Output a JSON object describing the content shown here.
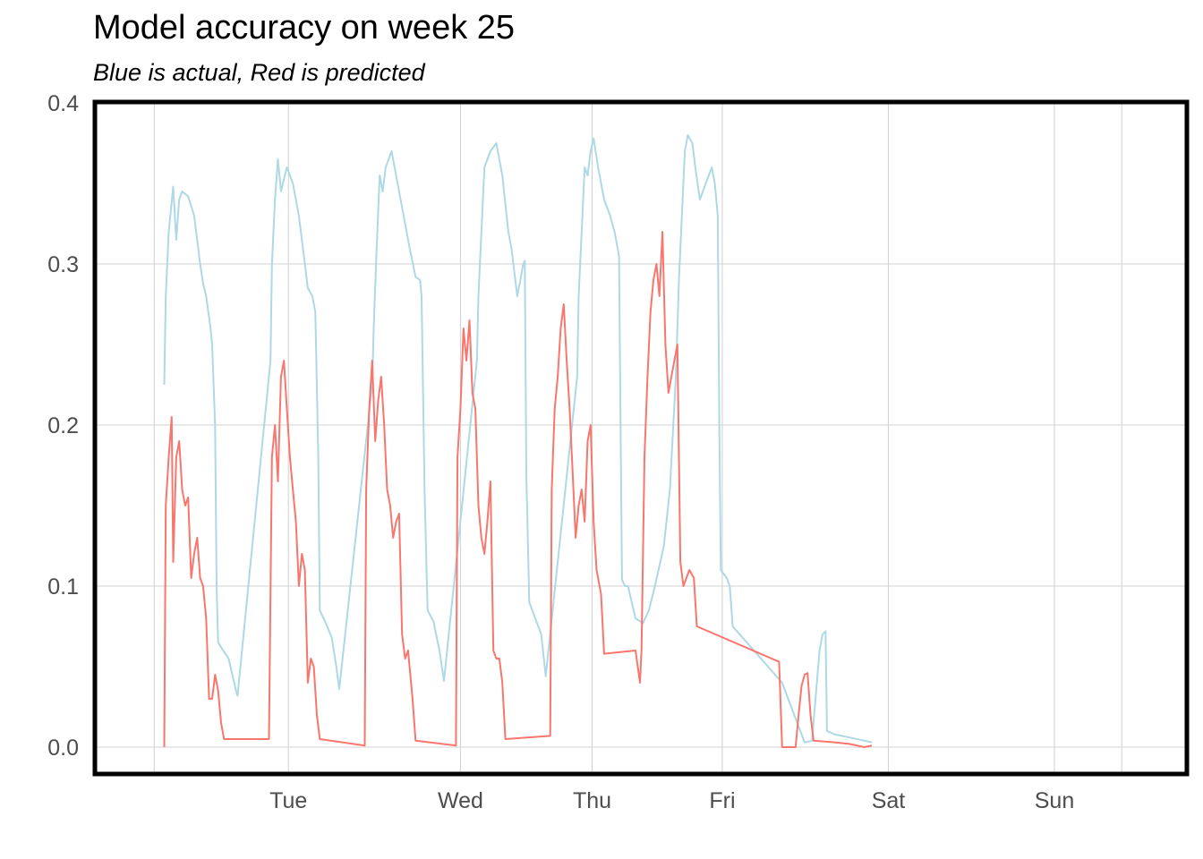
{
  "chart_data": {
    "type": "line",
    "title": "Model accuracy on week 25",
    "subtitle": "Blue is actual, Red is predicted",
    "xlabel": "",
    "ylabel": "",
    "ylim": [
      0,
      0.4
    ],
    "xlim": [
      0,
      7
    ],
    "y_ticks": [
      "0.0",
      "0.1",
      "0.2",
      "0.3",
      "0.4"
    ],
    "y_tick_values": [
      0,
      0.1,
      0.2,
      0.3,
      0.4
    ],
    "x_ticks": [
      {
        "label": "Tue",
        "x": 1.15
      },
      {
        "label": "Wed",
        "x": 2.3
      },
      {
        "label": "Thu",
        "x": 3.18
      },
      {
        "label": "Fri",
        "x": 4.05
      },
      {
        "label": "Sat",
        "x": 5.16
      },
      {
        "label": "Sun",
        "x": 6.27
      }
    ],
    "grid": true,
    "legend": "none",
    "series": [
      {
        "color": "#add8e6",
        "points": [
          [
            0.32,
            0.225
          ],
          [
            0.33,
            0.28
          ],
          [
            0.35,
            0.32
          ],
          [
            0.38,
            0.348
          ],
          [
            0.4,
            0.315
          ],
          [
            0.42,
            0.34
          ],
          [
            0.44,
            0.345
          ],
          [
            0.48,
            0.342
          ],
          [
            0.52,
            0.33
          ],
          [
            0.56,
            0.3
          ],
          [
            0.58,
            0.288
          ],
          [
            0.6,
            0.28
          ],
          [
            0.63,
            0.26
          ],
          [
            0.64,
            0.25
          ],
          [
            0.66,
            0.2
          ],
          [
            0.67,
            0.1
          ],
          [
            0.68,
            0.065
          ],
          [
            0.7,
            0.062
          ],
          [
            0.75,
            0.055
          ],
          [
            0.8,
            0.035
          ],
          [
            0.81,
            0.032
          ],
          [
            1.03,
            0.24
          ],
          [
            1.04,
            0.3
          ],
          [
            1.06,
            0.34
          ],
          [
            1.08,
            0.365
          ],
          [
            1.1,
            0.345
          ],
          [
            1.14,
            0.36
          ],
          [
            1.18,
            0.35
          ],
          [
            1.22,
            0.33
          ],
          [
            1.26,
            0.3
          ],
          [
            1.28,
            0.285
          ],
          [
            1.31,
            0.28
          ],
          [
            1.33,
            0.27
          ],
          [
            1.35,
            0.18
          ],
          [
            1.36,
            0.085
          ],
          [
            1.4,
            0.077
          ],
          [
            1.44,
            0.068
          ],
          [
            1.47,
            0.05
          ],
          [
            1.49,
            0.036
          ],
          [
            1.71,
            0.225
          ],
          [
            1.72,
            0.26
          ],
          [
            1.74,
            0.31
          ],
          [
            1.76,
            0.355
          ],
          [
            1.78,
            0.345
          ],
          [
            1.8,
            0.36
          ],
          [
            1.84,
            0.37
          ],
          [
            1.88,
            0.35
          ],
          [
            1.92,
            0.33
          ],
          [
            1.96,
            0.31
          ],
          [
            2.0,
            0.292
          ],
          [
            2.03,
            0.29
          ],
          [
            2.04,
            0.28
          ],
          [
            2.06,
            0.16
          ],
          [
            2.08,
            0.085
          ],
          [
            2.12,
            0.078
          ],
          [
            2.16,
            0.06
          ],
          [
            2.19,
            0.041
          ],
          [
            2.41,
            0.24
          ],
          [
            2.42,
            0.28
          ],
          [
            2.44,
            0.32
          ],
          [
            2.46,
            0.36
          ],
          [
            2.48,
            0.365
          ],
          [
            2.5,
            0.37
          ],
          [
            2.54,
            0.375
          ],
          [
            2.58,
            0.355
          ],
          [
            2.62,
            0.32
          ],
          [
            2.64,
            0.31
          ],
          [
            2.68,
            0.28
          ],
          [
            2.7,
            0.29
          ],
          [
            2.72,
            0.3
          ],
          [
            2.73,
            0.302
          ],
          [
            2.74,
            0.17
          ],
          [
            2.76,
            0.09
          ],
          [
            2.8,
            0.08
          ],
          [
            2.84,
            0.07
          ],
          [
            2.87,
            0.044
          ],
          [
            3.08,
            0.23
          ],
          [
            3.09,
            0.28
          ],
          [
            3.11,
            0.32
          ],
          [
            3.13,
            0.36
          ],
          [
            3.15,
            0.355
          ],
          [
            3.17,
            0.37
          ],
          [
            3.19,
            0.378
          ],
          [
            3.22,
            0.36
          ],
          [
            3.26,
            0.34
          ],
          [
            3.3,
            0.33
          ],
          [
            3.33,
            0.32
          ],
          [
            3.35,
            0.31
          ],
          [
            3.36,
            0.305
          ],
          [
            3.37,
            0.2
          ],
          [
            3.38,
            0.104
          ],
          [
            3.4,
            0.1
          ],
          [
            3.42,
            0.1
          ],
          [
            3.47,
            0.08
          ],
          [
            3.52,
            0.077
          ],
          [
            3.56,
            0.085
          ],
          [
            3.6,
            0.1
          ],
          [
            3.66,
            0.125
          ],
          [
            3.7,
            0.16
          ],
          [
            3.74,
            0.23
          ],
          [
            3.76,
            0.29
          ],
          [
            3.78,
            0.33
          ],
          [
            3.8,
            0.37
          ],
          [
            3.82,
            0.38
          ],
          [
            3.85,
            0.375
          ],
          [
            3.87,
            0.36
          ],
          [
            3.9,
            0.34
          ],
          [
            3.94,
            0.35
          ],
          [
            3.98,
            0.36
          ],
          [
            4.0,
            0.35
          ],
          [
            4.02,
            0.33
          ],
          [
            4.03,
            0.2
          ],
          [
            4.04,
            0.11
          ],
          [
            4.08,
            0.105
          ],
          [
            4.1,
            0.1
          ],
          [
            4.12,
            0.075
          ],
          [
            4.45,
            0.04
          ],
          [
            4.6,
            0.003
          ],
          [
            4.65,
            0.004
          ],
          [
            4.7,
            0.06
          ],
          [
            4.72,
            0.07
          ],
          [
            4.74,
            0.072
          ],
          [
            4.75,
            0.01
          ],
          [
            4.8,
            0.008
          ],
          [
            4.9,
            0.006
          ],
          [
            5.0,
            0.004
          ],
          [
            5.05,
            0.003
          ]
        ]
      },
      {
        "color": "#f8766d",
        "points": [
          [
            0.32,
            0.0
          ],
          [
            0.33,
            0.15
          ],
          [
            0.35,
            0.18
          ],
          [
            0.37,
            0.205
          ],
          [
            0.38,
            0.115
          ],
          [
            0.4,
            0.18
          ],
          [
            0.42,
            0.19
          ],
          [
            0.44,
            0.16
          ],
          [
            0.46,
            0.15
          ],
          [
            0.48,
            0.155
          ],
          [
            0.5,
            0.105
          ],
          [
            0.52,
            0.12
          ],
          [
            0.54,
            0.13
          ],
          [
            0.56,
            0.105
          ],
          [
            0.58,
            0.1
          ],
          [
            0.6,
            0.08
          ],
          [
            0.62,
            0.03
          ],
          [
            0.64,
            0.03
          ],
          [
            0.66,
            0.045
          ],
          [
            0.68,
            0.035
          ],
          [
            0.7,
            0.015
          ],
          [
            0.72,
            0.005
          ],
          [
            1.02,
            0.005
          ],
          [
            1.04,
            0.18
          ],
          [
            1.06,
            0.2
          ],
          [
            1.08,
            0.165
          ],
          [
            1.1,
            0.23
          ],
          [
            1.12,
            0.24
          ],
          [
            1.14,
            0.21
          ],
          [
            1.16,
            0.18
          ],
          [
            1.18,
            0.16
          ],
          [
            1.2,
            0.14
          ],
          [
            1.22,
            0.1
          ],
          [
            1.24,
            0.12
          ],
          [
            1.26,
            0.11
          ],
          [
            1.28,
            0.04
          ],
          [
            1.3,
            0.055
          ],
          [
            1.32,
            0.05
          ],
          [
            1.34,
            0.02
          ],
          [
            1.36,
            0.005
          ],
          [
            1.66,
            0.001
          ],
          [
            1.67,
            0.16
          ],
          [
            1.69,
            0.21
          ],
          [
            1.71,
            0.24
          ],
          [
            1.73,
            0.19
          ],
          [
            1.75,
            0.215
          ],
          [
            1.77,
            0.23
          ],
          [
            1.79,
            0.2
          ],
          [
            1.81,
            0.16
          ],
          [
            1.83,
            0.15
          ],
          [
            1.85,
            0.13
          ],
          [
            1.87,
            0.14
          ],
          [
            1.89,
            0.145
          ],
          [
            1.91,
            0.07
          ],
          [
            1.93,
            0.055
          ],
          [
            1.95,
            0.06
          ],
          [
            1.98,
            0.03
          ],
          [
            2.0,
            0.004
          ],
          [
            2.27,
            0.001
          ],
          [
            2.28,
            0.18
          ],
          [
            2.3,
            0.21
          ],
          [
            2.32,
            0.26
          ],
          [
            2.34,
            0.24
          ],
          [
            2.36,
            0.265
          ],
          [
            2.38,
            0.22
          ],
          [
            2.4,
            0.21
          ],
          [
            2.42,
            0.15
          ],
          [
            2.44,
            0.13
          ],
          [
            2.46,
            0.12
          ],
          [
            2.48,
            0.14
          ],
          [
            2.5,
            0.165
          ],
          [
            2.52,
            0.06
          ],
          [
            2.54,
            0.055
          ],
          [
            2.56,
            0.055
          ],
          [
            2.58,
            0.04
          ],
          [
            2.6,
            0.005
          ],
          [
            2.9,
            0.007
          ],
          [
            2.91,
            0.16
          ],
          [
            2.93,
            0.21
          ],
          [
            2.95,
            0.23
          ],
          [
            2.97,
            0.26
          ],
          [
            2.99,
            0.275
          ],
          [
            3.01,
            0.24
          ],
          [
            3.03,
            0.21
          ],
          [
            3.05,
            0.17
          ],
          [
            3.07,
            0.13
          ],
          [
            3.09,
            0.15
          ],
          [
            3.11,
            0.16
          ],
          [
            3.13,
            0.14
          ],
          [
            3.15,
            0.19
          ],
          [
            3.17,
            0.2
          ],
          [
            3.19,
            0.14
          ],
          [
            3.21,
            0.11
          ],
          [
            3.24,
            0.095
          ],
          [
            3.26,
            0.058
          ],
          [
            3.47,
            0.06
          ],
          [
            3.5,
            0.04
          ],
          [
            3.51,
            0.06
          ],
          [
            3.53,
            0.18
          ],
          [
            3.55,
            0.23
          ],
          [
            3.57,
            0.27
          ],
          [
            3.59,
            0.29
          ],
          [
            3.61,
            0.3
          ],
          [
            3.63,
            0.28
          ],
          [
            3.65,
            0.32
          ],
          [
            3.67,
            0.25
          ],
          [
            3.69,
            0.22
          ],
          [
            3.71,
            0.23
          ],
          [
            3.73,
            0.24
          ],
          [
            3.75,
            0.25
          ],
          [
            3.77,
            0.115
          ],
          [
            3.79,
            0.1
          ],
          [
            3.81,
            0.105
          ],
          [
            3.83,
            0.11
          ],
          [
            3.86,
            0.105
          ],
          [
            3.88,
            0.075
          ],
          [
            4.43,
            0.053
          ],
          [
            4.45,
            0.0
          ],
          [
            4.54,
            0.0
          ],
          [
            4.56,
            0.02
          ],
          [
            4.58,
            0.038
          ],
          [
            4.6,
            0.045
          ],
          [
            4.62,
            0.046
          ],
          [
            4.64,
            0.02
          ],
          [
            4.66,
            0.004
          ],
          [
            4.8,
            0.003
          ],
          [
            4.9,
            0.002
          ],
          [
            5.0,
            0.0
          ],
          [
            5.05,
            0.001
          ]
        ]
      }
    ]
  }
}
